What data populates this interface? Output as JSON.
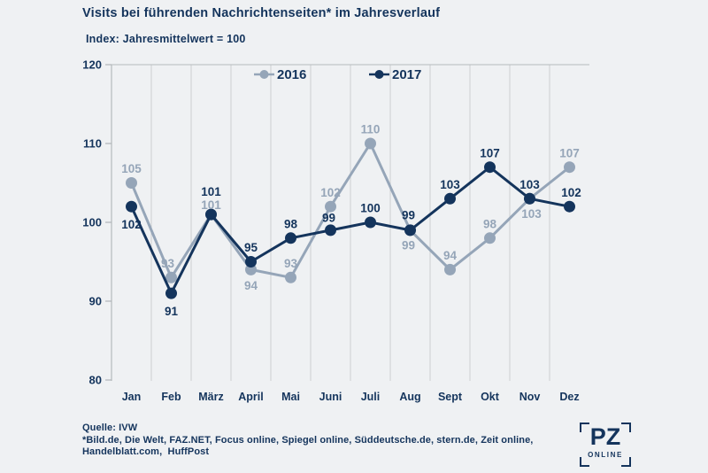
{
  "header": {
    "title": "Visits bei führenden Nachrichtenseiten* im Jahresverlauf",
    "subtitle": "Index: Jahresmittelwert = 100"
  },
  "chart_data": {
    "type": "line",
    "title": "Visits bei führenden Nachrichtenseiten im Jahresverlauf",
    "subtitle": "Index: Jahresmittelwert = 100",
    "categories": [
      "Jan",
      "Feb",
      "März",
      "April",
      "Mai",
      "Juni",
      "Juli",
      "Aug",
      "Sept",
      "Okt",
      "Nov",
      "Dez"
    ],
    "series": [
      {
        "name": "2016",
        "color": "#95a5b8",
        "values": [
          105,
          93,
          101,
          94,
          93,
          102,
          110,
          99,
          94,
          98,
          103,
          107
        ],
        "label_offsets": [
          [
            0,
            -16
          ],
          [
            -4,
            -16
          ],
          [
            0,
            -11
          ],
          [
            0,
            18
          ],
          [
            0,
            -16
          ],
          [
            0,
            -16
          ],
          [
            0,
            -16
          ],
          [
            -2,
            17
          ],
          [
            0,
            -16
          ],
          [
            0,
            -16
          ],
          [
            2,
            17
          ],
          [
            0,
            -16
          ]
        ]
      },
      {
        "name": "2017",
        "color": "#14345c",
        "values": [
          102,
          91,
          101,
          95,
          98,
          99,
          100,
          99,
          103,
          107,
          103,
          102
        ],
        "label_offsets": [
          [
            0,
            20
          ],
          [
            0,
            20
          ],
          [
            0,
            -26
          ],
          [
            0,
            -16
          ],
          [
            0,
            -16
          ],
          [
            -2,
            -14
          ],
          [
            0,
            -16
          ],
          [
            -2,
            -17
          ],
          [
            0,
            -16
          ],
          [
            0,
            -16
          ],
          [
            0,
            -16
          ],
          [
            2,
            -16
          ]
        ]
      }
    ],
    "xlabel": "",
    "ylabel": "",
    "ylim": [
      80,
      120
    ],
    "yticks": [
      120,
      110,
      100,
      90,
      80
    ],
    "grid": {
      "vertical": true,
      "horizontal": false,
      "top_border": true
    },
    "legend_position": "top-center"
  },
  "footer": {
    "source": "Quelle: IVW",
    "note_line_1": "*Bild.de, Die Welt, FAZ.NET, Focus online, Spiegel online, Süddeutsche.de, stern.de, Zeit online,",
    "note_line_2": "Handelblatt.com,  HuffPost"
  },
  "logo": {
    "main": "PZ",
    "sub": "ONLINE"
  },
  "colors": {
    "navy": "#14345c",
    "gray_blue": "#95a5b8",
    "background": "#eff1f3",
    "gridline": "#ccd0d2",
    "axis": "#a9afb2",
    "top_border": "#b5babd",
    "tick": "#b0b5b8"
  }
}
